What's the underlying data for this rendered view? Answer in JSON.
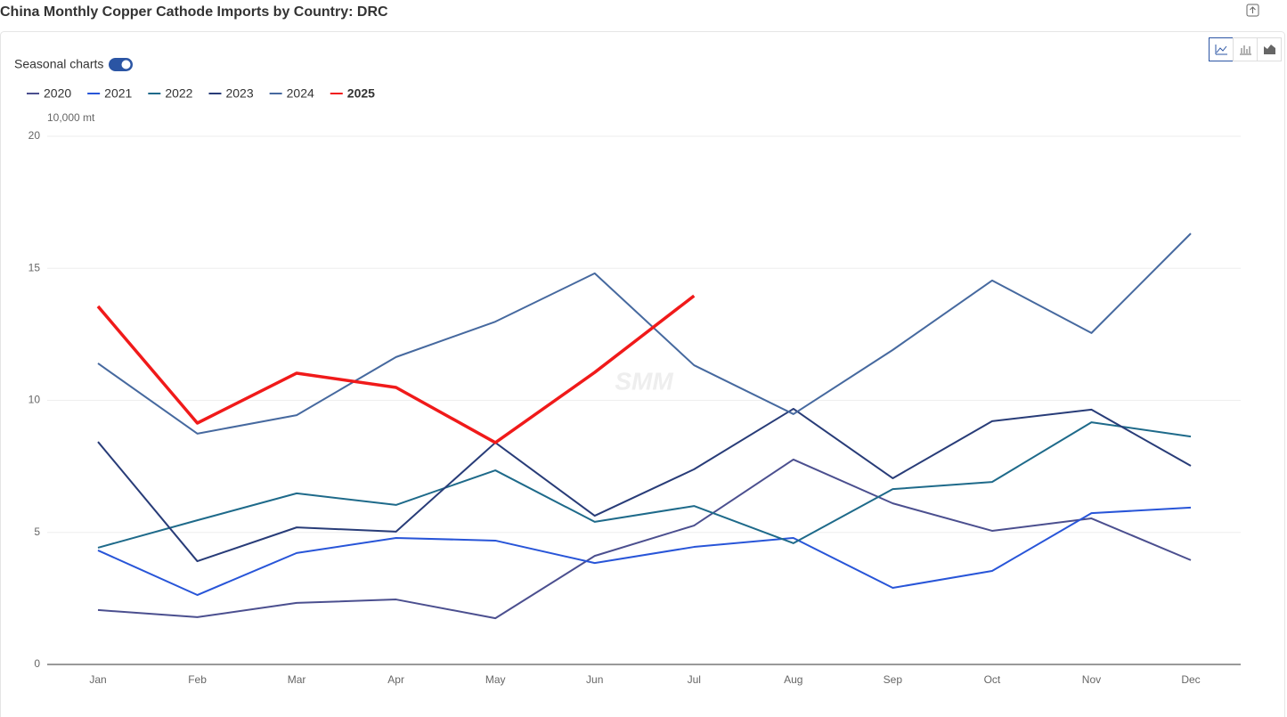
{
  "title": "China Monthly Copper Cathode Imports by Country: DRC",
  "toggle_label": "Seasonal charts",
  "chart_data": {
    "type": "line",
    "unit": "10,000 mt",
    "watermark": "SMM",
    "categories": [
      "Jan",
      "Feb",
      "Mar",
      "Apr",
      "May",
      "Jun",
      "Jul",
      "Aug",
      "Sep",
      "Oct",
      "Nov",
      "Dec"
    ],
    "ylim": [
      0,
      20
    ],
    "yticks": [
      0,
      5,
      10,
      15,
      20
    ],
    "grid": true,
    "series": [
      {
        "name": "2020",
        "color": "#4b4f8f",
        "values": [
          2.06,
          1.79,
          2.33,
          2.46,
          1.75,
          4.11,
          5.26,
          7.76,
          6.1,
          5.06,
          5.53,
          3.95
        ]
      },
      {
        "name": "2021",
        "color": "#2855d8",
        "values": [
          4.32,
          2.63,
          4.22,
          4.79,
          4.69,
          3.84,
          4.45,
          4.79,
          2.9,
          3.54,
          5.73,
          5.94
        ]
      },
      {
        "name": "2022",
        "color": "#1e6a8a",
        "values": [
          4.42,
          5.46,
          6.48,
          6.04,
          7.35,
          5.4,
          6.0,
          4.59,
          6.64,
          6.91,
          9.17,
          8.63
        ]
      },
      {
        "name": "2023",
        "color": "#283c78",
        "values": [
          8.43,
          3.91,
          5.19,
          5.03,
          8.4,
          5.63,
          7.39,
          9.68,
          7.05,
          9.21,
          9.65,
          7.52
        ]
      },
      {
        "name": "2024",
        "color": "#46699f",
        "values": [
          11.4,
          8.74,
          9.44,
          11.64,
          12.98,
          14.81,
          11.33,
          9.48,
          11.91,
          14.54,
          12.55,
          16.32
        ]
      },
      {
        "name": "2025",
        "color": "#f01a1a",
        "values": [
          13.56,
          9.14,
          11.03,
          10.49,
          8.4,
          11.06,
          13.96,
          null,
          null,
          null,
          null,
          null
        ]
      }
    ]
  }
}
